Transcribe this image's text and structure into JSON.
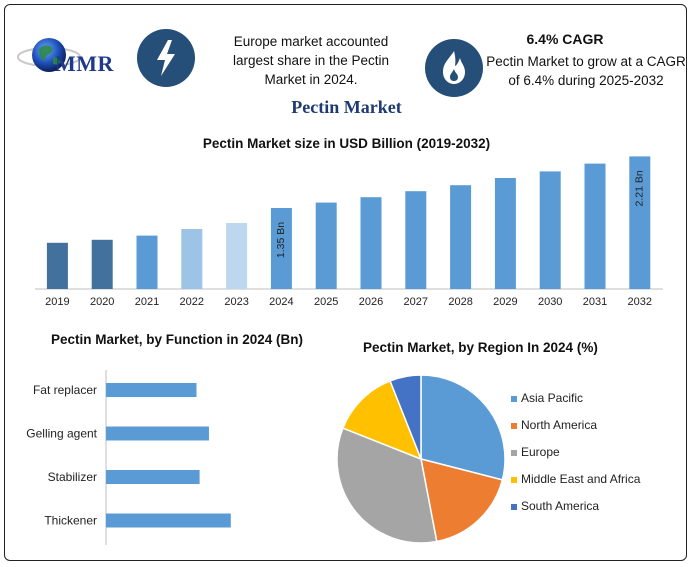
{
  "header": {
    "logo_text": "MMR",
    "logo_icon": "globe-icon",
    "europe_text": "Europe market accounted largest share in the Pectin Market in 2024.",
    "europe_icon": "lightning-bolt-icon",
    "cagr_title": "6.4% CAGR",
    "cagr_text": "Pectin Market to grow at a CAGR of 6.4% during 2025-2032",
    "cagr_icon": "flame-icon"
  },
  "title": "Pectin Market",
  "colors": {
    "navy": "#254e78",
    "bar_dark": "#41719c",
    "bar_mid": "#5b9bd5",
    "bar_light": "#9dc3e6",
    "bar_lighter": "#bdd7ee"
  },
  "chart_data": [
    {
      "type": "bar",
      "title": "Pectin Market size in USD Billion (2019-2032)",
      "categories": [
        "2019",
        "2020",
        "2021",
        "2022",
        "2023",
        "2024",
        "2025",
        "2026",
        "2027",
        "2028",
        "2029",
        "2030",
        "2031",
        "2032"
      ],
      "values": [
        0.77,
        0.82,
        0.89,
        1.0,
        1.1,
        1.35,
        1.44,
        1.53,
        1.63,
        1.73,
        1.85,
        1.96,
        2.09,
        2.21
      ],
      "bar_colors": [
        "#41719c",
        "#41719c",
        "#5b9bd5",
        "#9dc3e6",
        "#bdd7ee",
        "#5b9bd5",
        "#5b9bd5",
        "#5b9bd5",
        "#5b9bd5",
        "#5b9bd5",
        "#5b9bd5",
        "#5b9bd5",
        "#5b9bd5",
        "#5b9bd5"
      ],
      "data_labels": [
        {
          "index": 5,
          "text": "1.35 Bn"
        },
        {
          "index": 13,
          "text": "2.21 Bn"
        }
      ],
      "ylim": [
        0,
        2.5
      ],
      "grid": false
    },
    {
      "type": "bar",
      "orientation": "horizontal",
      "title": "Pectin Market, by Function in 2024 (Bn)",
      "categories": [
        "Fat replacer",
        "Gelling agent",
        "Stabilizer",
        "Thickener"
      ],
      "values": [
        0.29,
        0.33,
        0.3,
        0.4
      ],
      "xlim": [
        0,
        0.5
      ],
      "color": "#5b9bd5",
      "grid": false
    },
    {
      "type": "pie",
      "title": "Pectin Market, by Region In 2024 (%)",
      "categories": [
        "Asia Pacific",
        "North America",
        "Europe",
        "Middle East and Africa",
        "South America"
      ],
      "values": [
        29,
        18,
        34,
        13,
        6
      ],
      "colors": [
        "#5b9bd5",
        "#ed7d31",
        "#a5a5a5",
        "#ffc000",
        "#4472c4"
      ],
      "legend": "right"
    }
  ]
}
